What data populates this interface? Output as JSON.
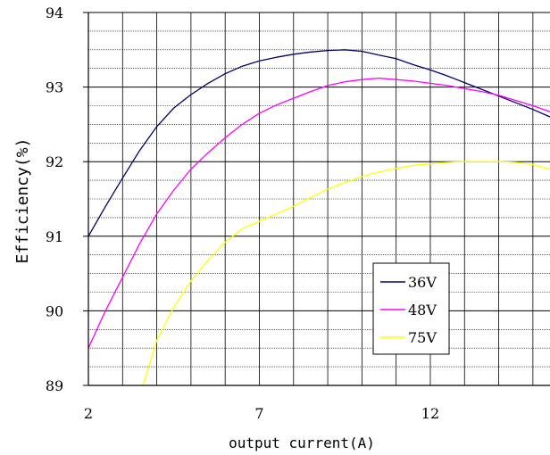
{
  "chart_data": {
    "type": "line",
    "xlabel": "output current(A)",
    "ylabel": "Efficiency(%)",
    "xlim": [
      2,
      15.5
    ],
    "ylim": [
      89,
      94
    ],
    "xticks": [
      2,
      7,
      12
    ],
    "yticks": [
      89,
      90,
      91,
      92,
      93,
      94
    ],
    "grid": true,
    "legend_position": "lower-right",
    "series": [
      {
        "name": "36V",
        "color": "#000066",
        "x": [
          2,
          2.5,
          3,
          3.5,
          4,
          4.5,
          5,
          5.5,
          6,
          6.5,
          7,
          7.5,
          8,
          8.5,
          9,
          9.5,
          10,
          10.5,
          11,
          11.5,
          12,
          12.5,
          13,
          13.5,
          14,
          14.5,
          15,
          15.5
        ],
        "y": [
          91.0,
          91.4,
          91.78,
          92.15,
          92.47,
          92.72,
          92.9,
          93.05,
          93.18,
          93.28,
          93.35,
          93.4,
          93.44,
          93.47,
          93.49,
          93.5,
          93.48,
          93.43,
          93.38,
          93.3,
          93.23,
          93.15,
          93.06,
          92.97,
          92.88,
          92.79,
          92.7,
          92.6
        ]
      },
      {
        "name": "48V",
        "color": "#ff00ff",
        "x": [
          2,
          2.5,
          3,
          3.5,
          4,
          4.5,
          5,
          5.5,
          6,
          6.5,
          7,
          7.5,
          8,
          8.5,
          9,
          9.5,
          10,
          10.5,
          11,
          11.5,
          12,
          12.5,
          13,
          13.5,
          14,
          14.5,
          15,
          15.5
        ],
        "y": [
          89.5,
          90.0,
          90.45,
          90.9,
          91.3,
          91.62,
          91.9,
          92.12,
          92.32,
          92.5,
          92.65,
          92.76,
          92.85,
          92.94,
          93.02,
          93.07,
          93.1,
          93.12,
          93.1,
          93.08,
          93.05,
          93.02,
          92.98,
          92.94,
          92.89,
          92.82,
          92.75,
          92.67
        ]
      },
      {
        "name": "75V",
        "color": "#ffff00",
        "x": [
          3.6,
          4,
          4.5,
          5,
          5.5,
          6,
          6.5,
          7,
          7.5,
          8,
          8.5,
          9,
          9.5,
          10,
          10.5,
          11,
          11.5,
          12,
          12.5,
          13,
          13.5,
          14,
          14.5,
          15,
          15.5
        ],
        "y": [
          89.0,
          89.6,
          90.05,
          90.4,
          90.68,
          90.92,
          91.1,
          91.2,
          91.3,
          91.4,
          91.52,
          91.63,
          91.72,
          91.8,
          91.86,
          91.91,
          91.95,
          91.97,
          91.99,
          92.0,
          92.0,
          92.0,
          91.99,
          91.96,
          91.9
        ]
      }
    ]
  }
}
